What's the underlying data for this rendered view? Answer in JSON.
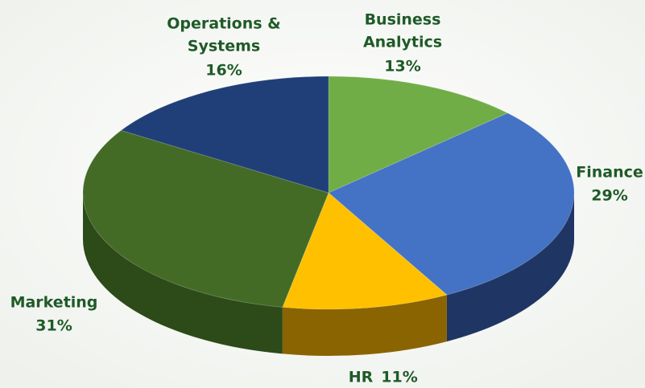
{
  "chart_data": {
    "type": "pie",
    "categories": [
      [
        "Business",
        "Analytics"
      ],
      "Finance",
      "HR",
      "Marketing",
      [
        "Operations &",
        "Systems"
      ]
    ],
    "values": [
      13,
      29,
      11,
      31,
      16
    ],
    "value_labels": [
      "13%",
      "29%",
      "11%",
      "31%",
      "16%"
    ],
    "colors": [
      "#70ad47",
      "#4472c4",
      "#ffc000",
      "#436b26",
      "#203f78"
    ],
    "side_colors": [
      "#4f7c30",
      "#1f3563",
      "#8a6400",
      "#2d4a19",
      "#142a52"
    ]
  }
}
